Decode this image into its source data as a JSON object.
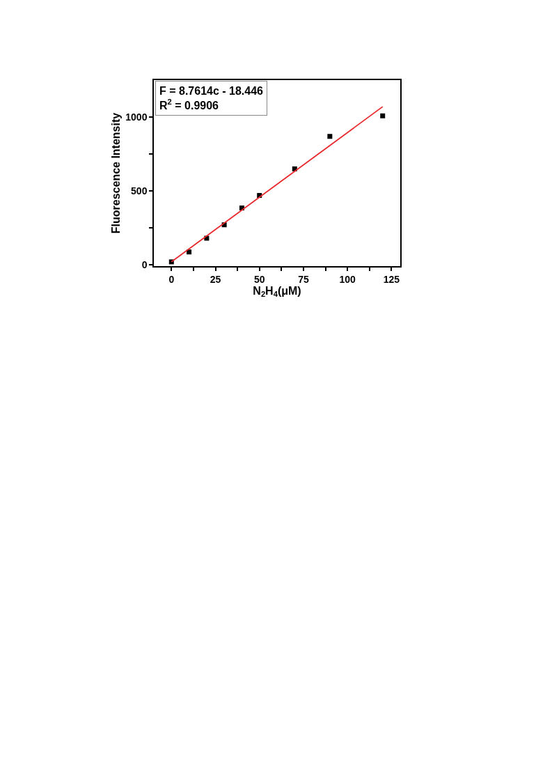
{
  "chart_data": {
    "type": "scatter",
    "xlabel": "N$_{2}$H$_{4}$(μM)",
    "ylabel": "Fluorescence Intensity",
    "x": [
      0,
      10,
      20,
      30,
      40,
      50,
      70,
      90,
      120
    ],
    "series": [
      {
        "color": "#000000",
        "marker": "square",
        "values": [
          19,
          86,
          179,
          270,
          384,
          469,
          649,
          869,
          1008
        ]
      },
      {
        "type": "line",
        "color": "#e8262a",
        "marker": "none",
        "line_style": "solid",
        "x": [
          0,
          120
        ],
        "values": [
          19,
          1070
        ]
      }
    ],
    "xlim": [
      -10,
      130
    ],
    "xticks": [
      0,
      {
        "value": 12.5,
        "label": null
      },
      25,
      {
        "value": 37.5,
        "label": null
      },
      50,
      {
        "value": 62.5,
        "label": null
      },
      75,
      {
        "value": 87.5,
        "label": null
      },
      100,
      {
        "value": 112.5,
        "label": null
      },
      125
    ],
    "ylim": [
      -10,
      1250
    ],
    "yticks": [
      0,
      {
        "value": 250,
        "label": null
      },
      500,
      {
        "value": 750,
        "label": null
      },
      1000
    ],
    "annotations": [
      "F = 8.7614c - 18.446",
      "R$^{2}$ = 0.9906"
    ]
  }
}
